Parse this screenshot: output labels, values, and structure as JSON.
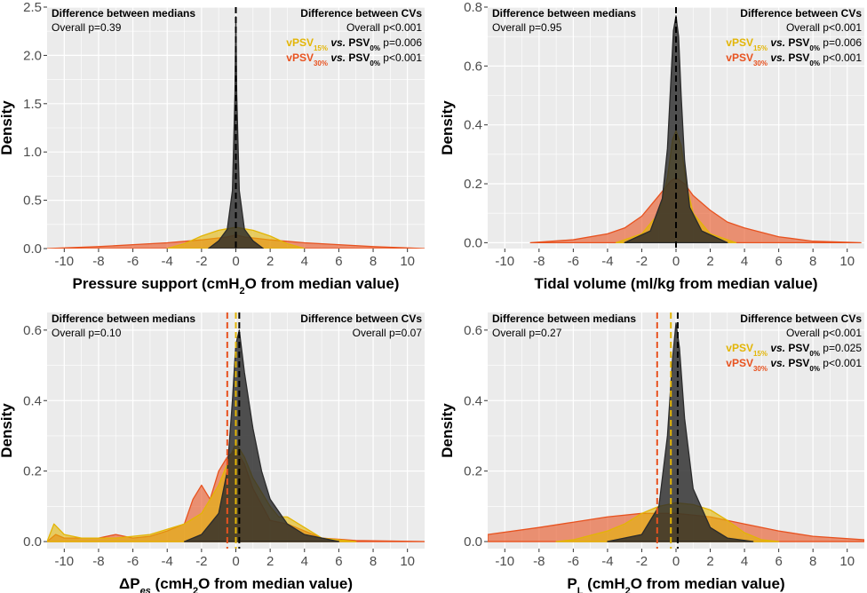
{
  "figure": {
    "colors": {
      "psv0": "#2b2b2b",
      "psv15": "#e3b505",
      "psv30": "#e8521f",
      "panel_bg": "#ebebeb",
      "grid": "#ffffff"
    },
    "y_axis_label": "Density"
  },
  "chart_data": [
    {
      "type": "area",
      "panel": "top-left",
      "xlabel": [
        "Pressure support (cmH",
        "2",
        "O from median value)"
      ],
      "ylabel": "Density",
      "xlim": [
        -11,
        11
      ],
      "ylim": [
        0,
        2.5
      ],
      "x_ticks": [
        -10,
        -8,
        -6,
        -4,
        -2,
        0,
        2,
        4,
        6,
        8,
        10
      ],
      "y_ticks": [
        0.0,
        0.5,
        1.0,
        1.5,
        2.0,
        2.5
      ],
      "y_tick_labels": [
        "0.0",
        "0.5",
        "1.0",
        "1.5",
        "2.0",
        "2.5"
      ],
      "medians_title": "Difference between medians",
      "medians_p": "Overall p=0.39",
      "cvs_title": "Difference between CVs",
      "cvs_lines": [
        {
          "kind": "overall",
          "text": "Overall p<0.001"
        },
        {
          "kind": "compare",
          "group": "vPSV",
          "sub": "15%",
          "vs": "vs.",
          "ref": "PSV",
          "refsub": "0%",
          "p": " p=0.006",
          "color": "#e3b505"
        },
        {
          "kind": "compare",
          "group": "vPSV",
          "sub": "30%",
          "vs": "vs.",
          "ref": "PSV",
          "refsub": "0%",
          "p": " p<0.001",
          "color": "#e8521f"
        }
      ],
      "medians": {
        "PSV0%": 0.0,
        "vPSV15%": 0.0,
        "vPSV30%": 0.0
      },
      "series": [
        {
          "name": "vPSV30%",
          "color": "#e8521f",
          "x": [
            -11,
            -8,
            -6,
            -4,
            -2,
            -0.5,
            0,
            0.5,
            2,
            4,
            6,
            8,
            11
          ],
          "y": [
            0.0,
            0.02,
            0.04,
            0.06,
            0.09,
            0.12,
            0.14,
            0.12,
            0.09,
            0.06,
            0.04,
            0.02,
            0.0
          ]
        },
        {
          "name": "vPSV15%",
          "color": "#e3b505",
          "x": [
            -4,
            -3,
            -2,
            -1,
            0,
            1,
            2,
            3,
            4
          ],
          "y": [
            0.0,
            0.05,
            0.13,
            0.19,
            0.22,
            0.19,
            0.13,
            0.05,
            0.0
          ]
        },
        {
          "name": "PSV0%",
          "color": "#2b2b2b",
          "x": [
            -1.6,
            -1.0,
            -0.5,
            -0.2,
            -0.05,
            0,
            0.05,
            0.2,
            0.5,
            1.0,
            1.6
          ],
          "y": [
            0.0,
            0.08,
            0.2,
            0.6,
            1.6,
            2.4,
            1.6,
            0.6,
            0.2,
            0.08,
            0.0
          ]
        }
      ]
    },
    {
      "type": "area",
      "panel": "top-right",
      "xlabel": [
        "Tidal volume (ml/kg from median value)"
      ],
      "ylabel": "Density",
      "xlim": [
        -11,
        11
      ],
      "ylim": [
        -0.02,
        0.8
      ],
      "x_ticks": [
        -10,
        -8,
        -6,
        -4,
        -2,
        0,
        2,
        4,
        6,
        8,
        10
      ],
      "y_ticks": [
        0.0,
        0.2,
        0.4,
        0.6,
        0.8
      ],
      "y_tick_labels": [
        "0.0",
        "0.2",
        "0.4",
        "0.6",
        "0.8"
      ],
      "medians_title": "Difference between medians",
      "medians_p": "Overall p=0.95",
      "cvs_title": "Difference between CVs",
      "cvs_lines": [
        {
          "kind": "overall",
          "text": "Overall p<0.001"
        },
        {
          "kind": "compare",
          "group": "vPSV",
          "sub": "15%",
          "vs": "vs.",
          "ref": "PSV",
          "refsub": "0%",
          "p": " p=0.006",
          "color": "#e3b505"
        },
        {
          "kind": "compare",
          "group": "vPSV",
          "sub": "30%",
          "vs": "vs.",
          "ref": "PSV",
          "refsub": "0%",
          "p": " p<0.001",
          "color": "#e8521f"
        }
      ],
      "medians": {
        "PSV0%": 0.0,
        "vPSV15%": 0.0,
        "vPSV30%": 0.0
      },
      "series": [
        {
          "name": "vPSV30%",
          "color": "#e8521f",
          "x": [
            -8.5,
            -6,
            -4,
            -3,
            -2,
            -1,
            -0.3,
            0,
            0.5,
            1,
            2,
            3,
            4,
            6,
            8,
            10.8
          ],
          "y": [
            0.0,
            0.01,
            0.03,
            0.05,
            0.09,
            0.16,
            0.21,
            0.22,
            0.2,
            0.16,
            0.11,
            0.07,
            0.05,
            0.02,
            0.005,
            0.0
          ]
        },
        {
          "name": "vPSV15%",
          "color": "#e3b505",
          "x": [
            -3.5,
            -2,
            -1,
            -0.5,
            -0.2,
            0,
            0.3,
            0.6,
            1,
            2,
            3.5
          ],
          "y": [
            0.0,
            0.03,
            0.1,
            0.22,
            0.35,
            0.38,
            0.33,
            0.2,
            0.1,
            0.03,
            0.0
          ]
        },
        {
          "name": "PSV0%",
          "color": "#2b2b2b",
          "x": [
            -3,
            -1.5,
            -0.8,
            -0.5,
            -0.3,
            -0.15,
            0,
            0.15,
            0.3,
            0.5,
            0.8,
            1.5,
            3
          ],
          "y": [
            0.0,
            0.04,
            0.15,
            0.32,
            0.55,
            0.72,
            0.77,
            0.7,
            0.5,
            0.28,
            0.12,
            0.04,
            0.0
          ]
        }
      ]
    },
    {
      "type": "area",
      "panel": "bottom-left",
      "xlabel": [
        "ΔP",
        "es",
        " (cmH",
        "2",
        "O from median value)"
      ],
      "ylabel": "Density",
      "xlim": [
        -11,
        11
      ],
      "ylim": [
        -0.02,
        0.65
      ],
      "x_ticks": [
        -10,
        -8,
        -6,
        -4,
        -2,
        0,
        2,
        4,
        6,
        8,
        10
      ],
      "y_ticks": [
        0.0,
        0.2,
        0.4,
        0.6
      ],
      "y_tick_labels": [
        "0.0",
        "0.2",
        "0.4",
        "0.6"
      ],
      "medians_title": "Difference between medians",
      "medians_p": "Overall p=0.10",
      "cvs_title": "Difference between CVs",
      "cvs_lines": [
        {
          "kind": "overall",
          "text": "Overall p=0.07"
        }
      ],
      "medians": {
        "PSV0%": 0.2,
        "vPSV15%": 0.0,
        "vPSV30%": -0.5
      },
      "series": [
        {
          "name": "vPSV30%",
          "color": "#e8521f",
          "x": [
            -11,
            -10.5,
            -10,
            -9,
            -8,
            -7,
            -6,
            -5,
            -4,
            -3,
            -2.5,
            -2,
            -1.5,
            -1,
            -0.5,
            0,
            0.5,
            1,
            2,
            3,
            4,
            5,
            7,
            11
          ],
          "y": [
            0.0,
            0.02,
            0.01,
            0.01,
            0.01,
            0.02,
            0.01,
            0.015,
            0.03,
            0.05,
            0.12,
            0.16,
            0.12,
            0.2,
            0.24,
            0.26,
            0.22,
            0.15,
            0.06,
            0.05,
            0.03,
            0.01,
            0.003,
            0.0
          ]
        },
        {
          "name": "vPSV15%",
          "color": "#e3b505",
          "x": [
            -11,
            -10.6,
            -10,
            -9,
            -7,
            -5,
            -3,
            -2,
            -1,
            -0.5,
            0,
            0.5,
            1,
            2,
            2.5,
            3,
            4,
            5,
            7
          ],
          "y": [
            0.0,
            0.05,
            0.02,
            0.01,
            0.01,
            0.02,
            0.05,
            0.08,
            0.16,
            0.22,
            0.28,
            0.24,
            0.18,
            0.1,
            0.07,
            0.07,
            0.04,
            0.01,
            0.0
          ]
        },
        {
          "name": "PSV0%",
          "color": "#2b2b2b",
          "x": [
            -3,
            -2,
            -1,
            -0.5,
            -0.2,
            0,
            0.2,
            0.5,
            1,
            1.5,
            2,
            3,
            4,
            6
          ],
          "y": [
            0.0,
            0.02,
            0.08,
            0.2,
            0.4,
            0.56,
            0.6,
            0.48,
            0.32,
            0.2,
            0.12,
            0.05,
            0.02,
            0.0
          ]
        }
      ]
    },
    {
      "type": "area",
      "panel": "bottom-right",
      "xlabel": [
        "P",
        "L",
        " (cmH",
        "2",
        "O from median value)"
      ],
      "ylabel": "Density",
      "xlim": [
        -11,
        11
      ],
      "ylim": [
        -0.02,
        0.65
      ],
      "x_ticks": [
        -10,
        -8,
        -6,
        -4,
        -2,
        0,
        2,
        4,
        6,
        8,
        10
      ],
      "y_ticks": [
        0.0,
        0.2,
        0.4,
        0.6
      ],
      "y_tick_labels": [
        "0.0",
        "0.2",
        "0.4",
        "0.6"
      ],
      "medians_title": "Difference between medians",
      "medians_p": "Overall p=0.27",
      "cvs_title": "Difference between CVs",
      "cvs_lines": [
        {
          "kind": "overall",
          "text": "Overall p<0.001"
        },
        {
          "kind": "compare",
          "group": "vPSV",
          "sub": "15%",
          "vs": "vs.",
          "ref": "PSV",
          "refsub": "0%",
          "p": " p=0.025",
          "color": "#e3b505"
        },
        {
          "kind": "compare",
          "group": "vPSV",
          "sub": "30%",
          "vs": "vs.",
          "ref": "PSV",
          "refsub": "0%",
          "p": " p<0.001",
          "color": "#e8521f"
        }
      ],
      "medians": {
        "PSV0%": 0.1,
        "vPSV15%": -0.3,
        "vPSV30%": -1.1
      },
      "series": [
        {
          "name": "vPSV30%",
          "color": "#e8521f",
          "x": [
            -11,
            -8,
            -6,
            -4,
            -2,
            0,
            2,
            4,
            6,
            8,
            11
          ],
          "y": [
            0.02,
            0.04,
            0.055,
            0.07,
            0.08,
            0.08,
            0.07,
            0.05,
            0.03,
            0.015,
            0.005
          ]
        },
        {
          "name": "vPSV15%",
          "color": "#e3b505",
          "x": [
            -7,
            -6,
            -4,
            -3,
            -2,
            -1,
            0,
            1,
            2,
            3,
            4,
            5,
            6
          ],
          "y": [
            0.0,
            0.005,
            0.03,
            0.05,
            0.08,
            0.1,
            0.11,
            0.105,
            0.09,
            0.06,
            0.025,
            0.005,
            0.0
          ]
        },
        {
          "name": "PSV0%",
          "color": "#2b2b2b",
          "x": [
            -4,
            -2,
            -1,
            -0.5,
            -0.2,
            0,
            0.2,
            0.5,
            1,
            2,
            3,
            4.5
          ],
          "y": [
            0.0,
            0.02,
            0.1,
            0.3,
            0.52,
            0.62,
            0.55,
            0.35,
            0.15,
            0.04,
            0.01,
            0.0
          ]
        }
      ]
    }
  ]
}
